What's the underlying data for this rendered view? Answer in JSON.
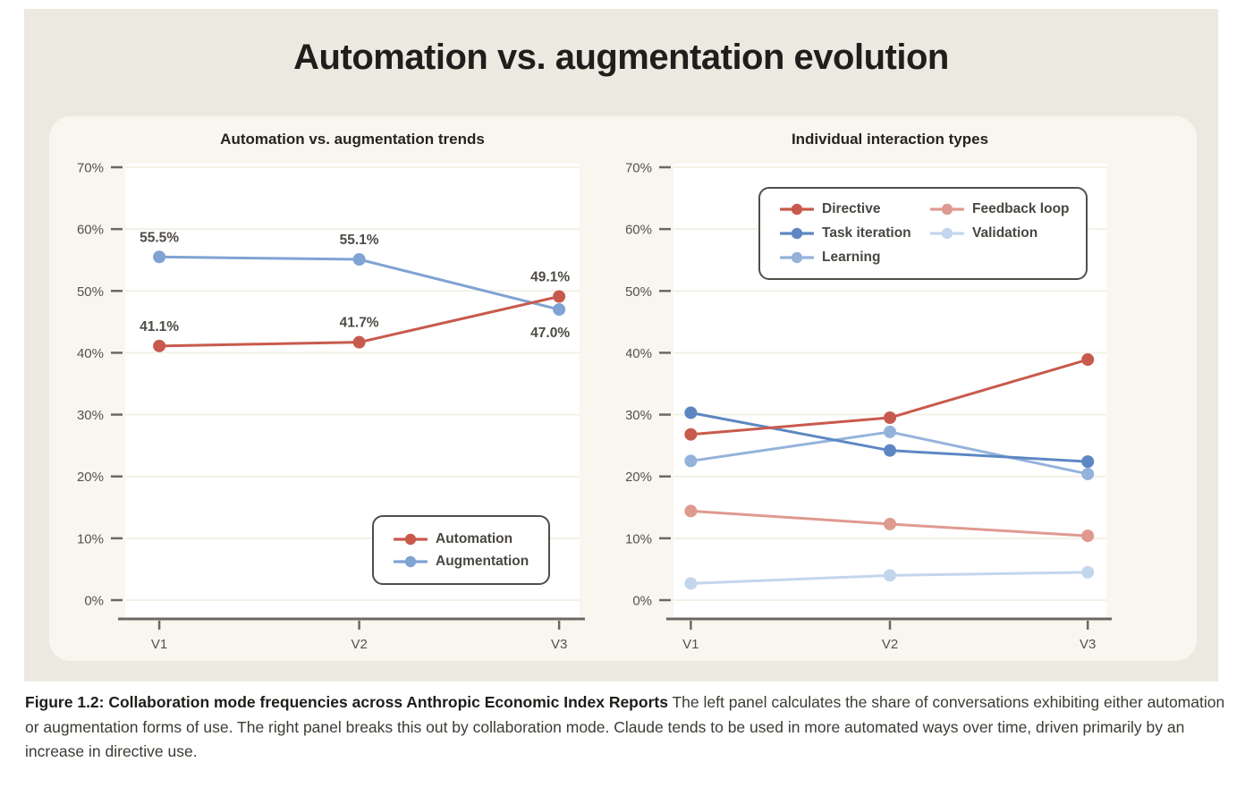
{
  "page": {
    "title": "Automation vs. augmentation evolution",
    "caption_bold": "Figure 1.2: Collaboration mode frequencies across Anthropic Economic Index Reports",
    "caption_text": " The left panel calculates the share of conversations exhibiting either automation or augmentation forms of use. The right panel breaks this out by collaboration mode. Claude tends to be used in more automated ways over time, driven primarily by an increase in directive use."
  },
  "colors": {
    "page_bg": "#FFFFFF",
    "band_bg": "#ECE9E1",
    "panel_bg": "#F8F6EF",
    "plot_bg": "#FFFFFF",
    "gridline": "#F3F0E7",
    "axis": "#6B6862",
    "tick_label": "#55524C",
    "data_label": "#4E4B45",
    "automation_red": "#C85A4D",
    "augmentation_blue": "#7FA3D3",
    "directive_red": "#C85A4D",
    "feedback_loop_salmon": "#DF9A8F",
    "task_iteration_blue": "#5D87C3",
    "validation_pale_blue": "#C3D6EC",
    "learning_light_blue": "#94B3DB"
  },
  "chart_data": [
    {
      "type": "line",
      "title": "Automation vs. augmentation trends",
      "x": [
        "V1",
        "V2",
        "V3"
      ],
      "xlabel": "",
      "ylabel": "",
      "ylim": [
        0,
        70
      ],
      "ytick_step": 10,
      "ytick_suffix": "%",
      "grid": true,
      "legend_position": "lower-right",
      "legend_columns": 1,
      "series": [
        {
          "name": "Automation",
          "color": "#C85A4D",
          "values": [
            41.1,
            41.7,
            49.1
          ],
          "point_labels": [
            "41.1%",
            "41.7%",
            "49.1%"
          ],
          "label_positions": [
            "above",
            "above",
            "above"
          ]
        },
        {
          "name": "Augmentation",
          "color": "#7FA3D3",
          "values": [
            55.5,
            55.1,
            47.0
          ],
          "point_labels": [
            "55.5%",
            "55.1%",
            "47.0%"
          ],
          "label_positions": [
            "above",
            "above",
            "below"
          ]
        }
      ]
    },
    {
      "type": "line",
      "title": "Individual interaction types",
      "x": [
        "V1",
        "V2",
        "V3"
      ],
      "xlabel": "",
      "ylabel": "",
      "ylim": [
        0,
        70
      ],
      "ytick_step": 10,
      "ytick_suffix": "%",
      "grid": true,
      "legend_position": "upper-left",
      "legend_columns": 2,
      "series": [
        {
          "name": "Directive",
          "color": "#C85A4D",
          "values": [
            26.8,
            29.5,
            38.9
          ]
        },
        {
          "name": "Task iteration",
          "color": "#5D87C3",
          "values": [
            30.3,
            24.2,
            22.4
          ]
        },
        {
          "name": "Learning",
          "color": "#94B3DB",
          "values": [
            22.5,
            27.2,
            20.4
          ]
        },
        {
          "name": "Feedback loop",
          "color": "#DF9A8F",
          "values": [
            14.4,
            12.3,
            10.4
          ]
        },
        {
          "name": "Validation",
          "color": "#C3D6EC",
          "values": [
            2.7,
            4.0,
            4.5
          ]
        }
      ]
    }
  ]
}
